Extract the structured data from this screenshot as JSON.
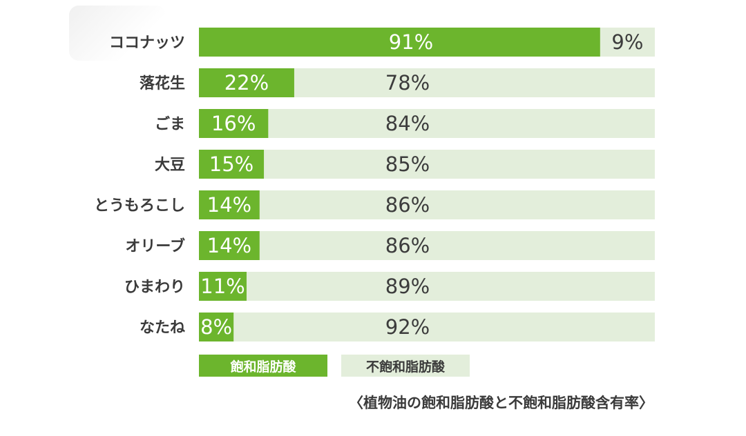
{
  "chart_data": {
    "type": "bar",
    "stacked": true,
    "orientation": "horizontal",
    "categories": [
      "ココナッツ",
      "落花生",
      "ごま",
      "大豆",
      "とうもろこし",
      "オリーブ",
      "ひまわり",
      "なたね"
    ],
    "series": [
      {
        "name": "飽和脂肪酸",
        "values": [
          91,
          22,
          16,
          15,
          14,
          14,
          11,
          8
        ],
        "color": "#6cb52d"
      },
      {
        "name": "不飽和脂肪酸",
        "values": [
          9,
          78,
          84,
          85,
          86,
          86,
          89,
          92
        ],
        "color": "#e3eedb"
      }
    ],
    "highlight_category": "ココナッツ",
    "highlight_color": "#6ab42d",
    "unit": "%",
    "xlim": [
      0,
      100
    ],
    "legend": "bottom",
    "caption": "〈植物油の飽和脂肪酸と不飽和脂肪酸含有率〉"
  }
}
